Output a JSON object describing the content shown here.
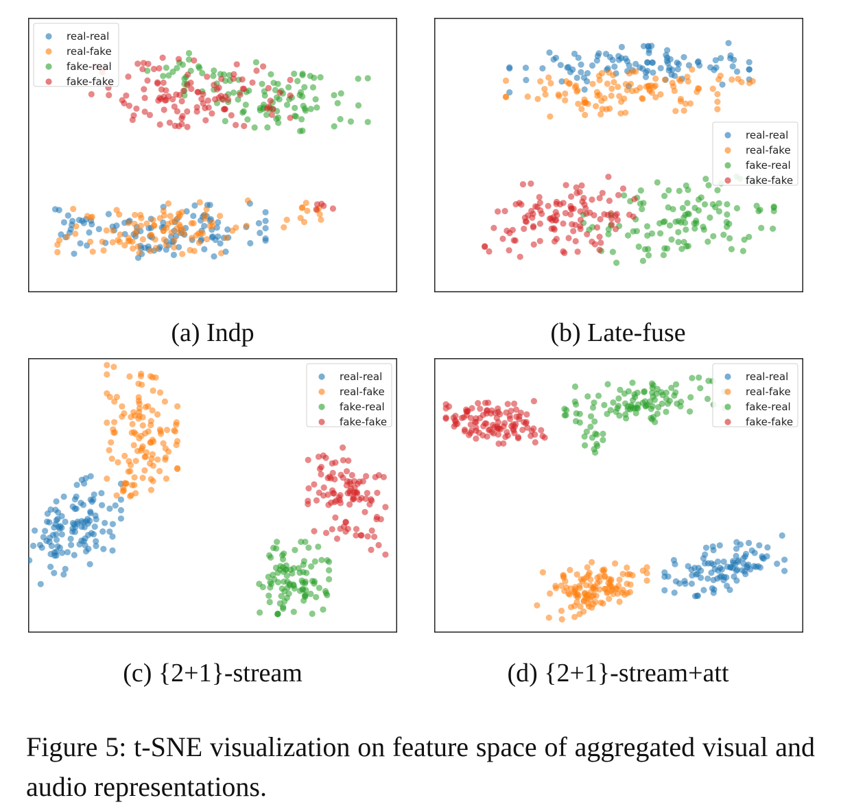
{
  "legend": {
    "labels": [
      "real-real",
      "real-fake",
      "fake-real",
      "fake-fake"
    ],
    "colors": [
      "#1f77b4",
      "#ff7f0e",
      "#2ca02c",
      "#d62728"
    ],
    "marker_alpha": 0.55
  },
  "panels": [
    {
      "id": "a",
      "caption": "(a) Indp",
      "legend_placement": "top-left"
    },
    {
      "id": "b",
      "caption": "(b) Late-fuse",
      "legend_placement": "right"
    },
    {
      "id": "c",
      "caption": "(c) {2+1}-stream",
      "legend_placement": "top-right"
    },
    {
      "id": "d",
      "caption": "(d) {2+1}-stream+att",
      "legend_placement": "top-right"
    }
  ],
  "figure_caption": "Figure 5: t-SNE visualization on feature space of aggregated visual and audio representations.",
  "chart_data": [
    {
      "type": "scatter",
      "title": "",
      "xlabel": "",
      "ylabel": "",
      "axes_ticks": false,
      "grid": false,
      "legend_placement": "top-left",
      "series": [
        {
          "name": "real-real",
          "color": "#1f77b4",
          "clusters": [
            {
              "cx": 0.36,
              "cy": 0.2,
              "rx": 0.29,
              "ry": 0.1,
              "n": 100,
              "tilt": 0.05
            },
            {
              "cx": 0.1,
              "cy": 0.25,
              "rx": 0.06,
              "ry": 0.04,
              "n": 10,
              "tilt": 0
            }
          ]
        },
        {
          "name": "real-fake",
          "color": "#ff7f0e",
          "clusters": [
            {
              "cx": 0.33,
              "cy": 0.21,
              "rx": 0.27,
              "ry": 0.1,
              "n": 100,
              "tilt": 0.05
            },
            {
              "cx": 0.78,
              "cy": 0.27,
              "rx": 0.09,
              "ry": 0.05,
              "n": 12,
              "tilt": 0
            }
          ]
        },
        {
          "name": "fake-real",
          "color": "#2ca02c",
          "clusters": [
            {
              "cx": 0.68,
              "cy": 0.72,
              "rx": 0.26,
              "ry": 0.13,
              "n": 95,
              "tilt": -0.2
            },
            {
              "cx": 0.42,
              "cy": 0.84,
              "rx": 0.13,
              "ry": 0.05,
              "n": 16,
              "tilt": 0
            }
          ]
        },
        {
          "name": "fake-fake",
          "color": "#d62728",
          "clusters": [
            {
              "cx": 0.42,
              "cy": 0.74,
              "rx": 0.3,
              "ry": 0.13,
              "n": 110,
              "tilt": -0.12
            },
            {
              "cx": 0.8,
              "cy": 0.32,
              "rx": 0.05,
              "ry": 0.04,
              "n": 5,
              "tilt": 0
            }
          ]
        }
      ]
    },
    {
      "type": "scatter",
      "title": "",
      "xlabel": "",
      "ylabel": "",
      "axes_ticks": false,
      "grid": false,
      "legend_placement": "right",
      "series": [
        {
          "name": "real-real",
          "color": "#1f77b4",
          "clusters": [
            {
              "cx": 0.53,
              "cy": 0.84,
              "rx": 0.34,
              "ry": 0.08,
              "n": 100,
              "tilt": 0.05
            }
          ]
        },
        {
          "name": "real-fake",
          "color": "#ff7f0e",
          "clusters": [
            {
              "cx": 0.48,
              "cy": 0.74,
              "rx": 0.3,
              "ry": 0.08,
              "n": 100,
              "tilt": 0.06
            },
            {
              "cx": 0.8,
              "cy": 0.78,
              "rx": 0.08,
              "ry": 0.03,
              "n": 8,
              "tilt": 0
            }
          ]
        },
        {
          "name": "fake-real",
          "color": "#2ca02c",
          "clusters": [
            {
              "cx": 0.67,
              "cy": 0.25,
              "rx": 0.27,
              "ry": 0.15,
              "n": 110,
              "tilt": 0.1
            }
          ]
        },
        {
          "name": "fake-fake",
          "color": "#d62728",
          "clusters": [
            {
              "cx": 0.34,
              "cy": 0.26,
              "rx": 0.22,
              "ry": 0.14,
              "n": 115,
              "tilt": 0.12
            }
          ]
        }
      ]
    },
    {
      "type": "scatter",
      "title": "",
      "xlabel": "",
      "ylabel": "",
      "axes_ticks": false,
      "grid": false,
      "legend_placement": "top-right",
      "series": [
        {
          "name": "real-real",
          "color": "#1f77b4",
          "clusters": [
            {
              "cx": 0.11,
              "cy": 0.38,
              "rx": 0.13,
              "ry": 0.17,
              "n": 115,
              "tilt": 0.55
            }
          ]
        },
        {
          "name": "real-fake",
          "color": "#ff7f0e",
          "clusters": [
            {
              "cx": 0.3,
              "cy": 0.75,
              "rx": 0.1,
              "ry": 0.22,
              "n": 110,
              "tilt": -0.35
            },
            {
              "cx": 0.26,
              "cy": 0.51,
              "rx": 0.05,
              "ry": 0.03,
              "n": 8,
              "tilt": 0
            }
          ]
        },
        {
          "name": "fake-real",
          "color": "#2ca02c",
          "clusters": [
            {
              "cx": 0.73,
              "cy": 0.18,
              "rx": 0.1,
              "ry": 0.14,
              "n": 95,
              "tilt": 0
            }
          ]
        },
        {
          "name": "fake-fake",
          "color": "#d62728",
          "clusters": [
            {
              "cx": 0.88,
              "cy": 0.5,
              "rx": 0.11,
              "ry": 0.18,
              "n": 100,
              "tilt": -0.45
            }
          ]
        }
      ]
    },
    {
      "type": "scatter",
      "title": "",
      "xlabel": "",
      "ylabel": "",
      "axes_ticks": false,
      "grid": false,
      "legend_placement": "top-right",
      "series": [
        {
          "name": "real-real",
          "color": "#1f77b4",
          "clusters": [
            {
              "cx": 0.8,
              "cy": 0.22,
              "rx": 0.17,
              "ry": 0.09,
              "n": 100,
              "tilt": 0.25
            }
          ]
        },
        {
          "name": "real-fake",
          "color": "#ff7f0e",
          "clusters": [
            {
              "cx": 0.42,
              "cy": 0.14,
              "rx": 0.16,
              "ry": 0.1,
              "n": 120,
              "tilt": 0.25
            }
          ]
        },
        {
          "name": "fake-real",
          "color": "#2ca02c",
          "clusters": [
            {
              "cx": 0.56,
              "cy": 0.86,
              "rx": 0.24,
              "ry": 0.08,
              "n": 100,
              "tilt": 0.1
            },
            {
              "cx": 0.43,
              "cy": 0.72,
              "rx": 0.03,
              "ry": 0.1,
              "n": 12,
              "tilt": 0
            }
          ]
        },
        {
          "name": "fake-fake",
          "color": "#d62728",
          "clusters": [
            {
              "cx": 0.15,
              "cy": 0.78,
              "rx": 0.14,
              "ry": 0.08,
              "n": 110,
              "tilt": 0.05
            }
          ]
        }
      ]
    }
  ]
}
